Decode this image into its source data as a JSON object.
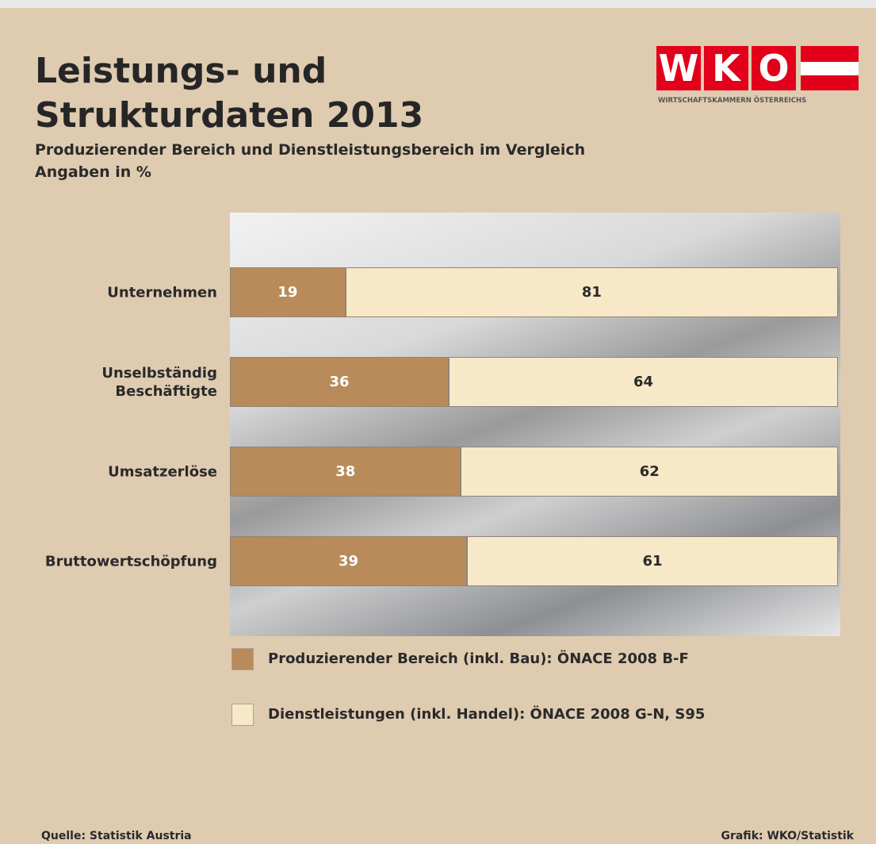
{
  "header": {
    "title": "Leistungs- und\nStrukturdaten 2013",
    "subtitle": "Produzierender Bereich und Dienstleistungsbereich im Vergleich",
    "note": "Angaben in %"
  },
  "logo": {
    "letters": [
      "W",
      "K",
      "O"
    ],
    "caption": "WIRTSCHAFTSKAMMERN ÖSTERREICHS"
  },
  "chart_data": {
    "type": "stacked-bar-horizontal",
    "categories": [
      "Unternehmen",
      "Unselbständig\nBeschäftigte",
      "Umsatzerlöse",
      "Bruttowertschöpfung"
    ],
    "series": [
      {
        "name": "Produzierender Bereich (inkl. Bau): ÖNACE 2008 B-F",
        "color": "#b98b5a",
        "values": [
          19,
          36,
          38,
          39
        ]
      },
      {
        "name": "Dienstleistungen (inkl. Handel): ÖNACE 2008 G-N, S95",
        "color": "#f7e8c8",
        "values": [
          81,
          64,
          62,
          61
        ]
      }
    ],
    "xlim": [
      0,
      100
    ]
  },
  "footer": {
    "source": "Quelle: Statistik Austria",
    "credit": "Grafik: WKO/Statistik"
  }
}
